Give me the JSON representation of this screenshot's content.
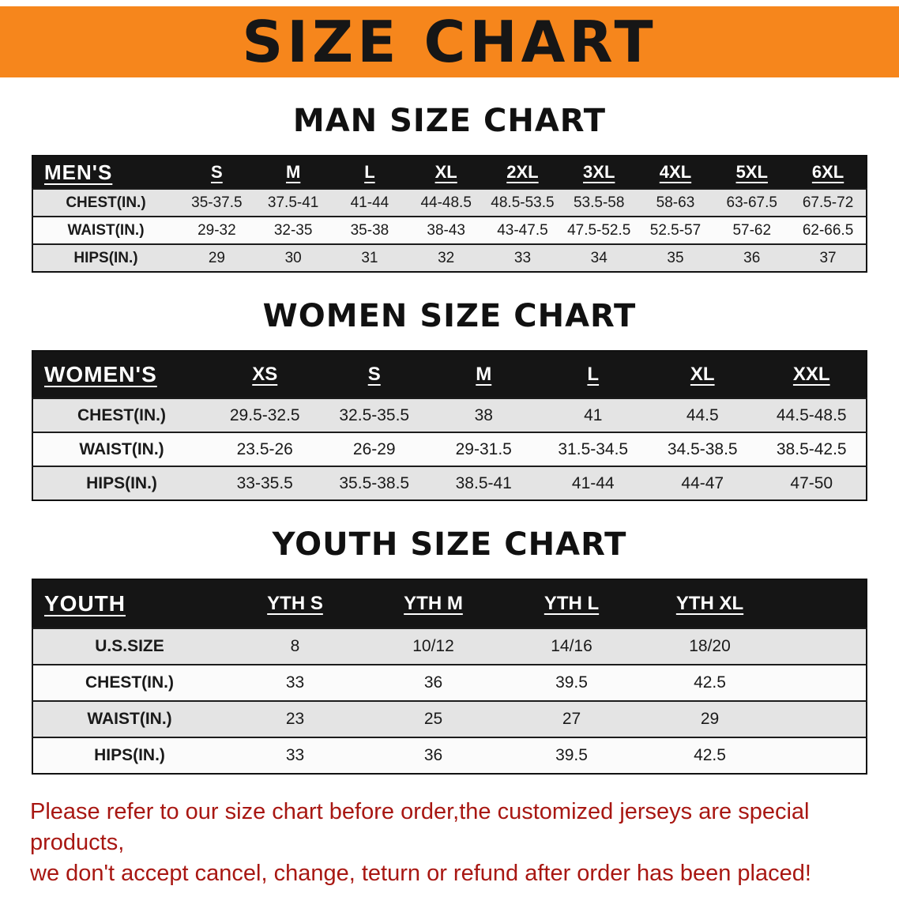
{
  "banner": {
    "title": "SIZE CHART"
  },
  "colors": {
    "banner_bg": "#F6861C",
    "banner_text": "#161616",
    "table_header_bg": "#151515",
    "row_shaded": "#E4E4E4",
    "row_plain": "#FBFBFB",
    "notice_text": "#A81712"
  },
  "sections": [
    {
      "id": "men",
      "heading": "MAN SIZE CHART",
      "table": {
        "header": [
          "MEN'S",
          "S",
          "M",
          "L",
          "XL",
          "2XL",
          "3XL",
          "4XL",
          "5XL",
          "6XL"
        ],
        "rows": [
          [
            "CHEST(IN.)",
            "35-37.5",
            "37.5-41",
            "41-44",
            "44-48.5",
            "48.5-53.5",
            "53.5-58",
            "58-63",
            "63-67.5",
            "67.5-72"
          ],
          [
            "WAIST(IN.)",
            "29-32",
            "32-35",
            "35-38",
            "38-43",
            "43-47.5",
            "47.5-52.5",
            "52.5-57",
            "57-62",
            "62-66.5"
          ],
          [
            "HIPS(IN.)",
            "29",
            "30",
            "31",
            "32",
            "33",
            "34",
            "35",
            "36",
            "37"
          ]
        ]
      }
    },
    {
      "id": "women",
      "heading": "WOMEN SIZE CHART",
      "table": {
        "header": [
          "WOMEN'S",
          "XS",
          "S",
          "M",
          "L",
          "XL",
          "XXL"
        ],
        "rows": [
          [
            "CHEST(IN.)",
            "29.5-32.5",
            "32.5-35.5",
            "38",
            "41",
            "44.5",
            "44.5-48.5"
          ],
          [
            "WAIST(IN.)",
            "23.5-26",
            "26-29",
            "29-31.5",
            "31.5-34.5",
            "34.5-38.5",
            "38.5-42.5"
          ],
          [
            "HIPS(IN.)",
            "33-35.5",
            "35.5-38.5",
            "38.5-41",
            "41-44",
            "44-47",
            "47-50"
          ]
        ]
      }
    },
    {
      "id": "youth",
      "heading": "YOUTH SIZE CHART",
      "table": {
        "header": [
          "YOUTH",
          "YTH S",
          "YTH M",
          "YTH L",
          "YTH XL"
        ],
        "rows": [
          [
            "U.S.SIZE",
            "8",
            "10/12",
            "14/16",
            "18/20"
          ],
          [
            "CHEST(IN.)",
            "33",
            "36",
            "39.5",
            "42.5"
          ],
          [
            "WAIST(IN.)",
            "23",
            "25",
            "27",
            "29"
          ],
          [
            "HIPS(IN.)",
            "33",
            "36",
            "39.5",
            "42.5"
          ]
        ]
      }
    }
  ],
  "footer": {
    "lines": [
      "Please refer to our size chart before order,the customized jerseys are special products,",
      "we don't accept cancel, change, teturn or refund after order has been placed!"
    ]
  }
}
